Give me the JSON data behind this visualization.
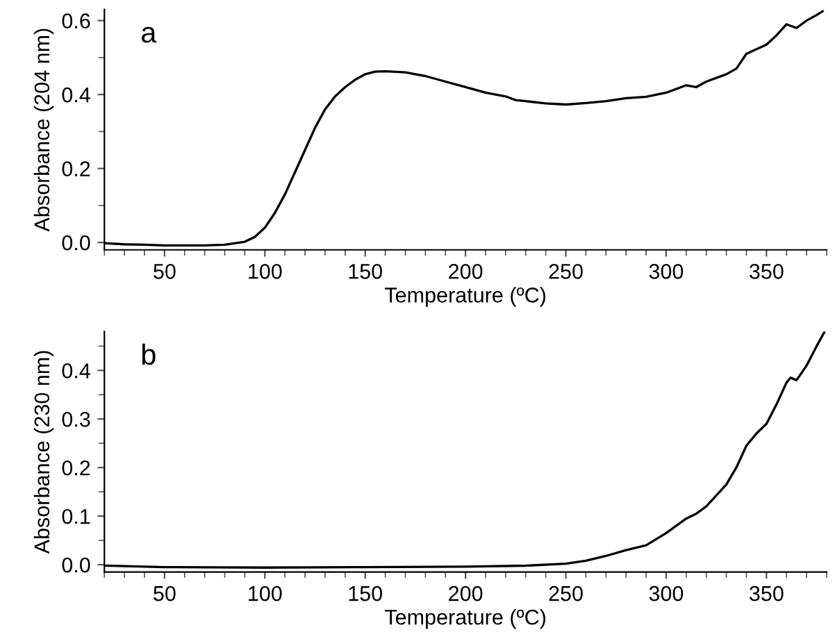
{
  "chart_data": [
    {
      "type": "line",
      "annotations": [
        "a"
      ],
      "xlabel": "Temperature (ºC)",
      "ylabel": "Absorbance (204 nm)",
      "xlim": [
        20,
        380
      ],
      "xticks": [
        50,
        100,
        150,
        200,
        250,
        300,
        350
      ],
      "ylim": [
        -0.02,
        0.63
      ],
      "yticks": [
        {
          "value": 0,
          "label": "0.0"
        },
        0.2,
        0.4,
        0.6
      ],
      "grid": false,
      "legend": false,
      "series": [
        {
          "color": "#000000",
          "x": [
            20,
            30,
            40,
            50,
            60,
            70,
            80,
            90,
            95,
            100,
            105,
            110,
            115,
            120,
            125,
            130,
            135,
            140,
            145,
            150,
            155,
            160,
            170,
            175,
            180,
            190,
            200,
            210,
            220,
            225,
            230,
            240,
            250,
            260,
            270,
            280,
            290,
            300,
            310,
            315,
            320,
            330,
            335,
            340,
            350,
            355,
            360,
            365,
            370,
            375,
            378
          ],
          "values": [
            -0.002,
            -0.005,
            -0.006,
            -0.008,
            -0.008,
            -0.008,
            -0.006,
            0.002,
            0.015,
            0.04,
            0.08,
            0.13,
            0.19,
            0.25,
            0.31,
            0.36,
            0.395,
            0.42,
            0.44,
            0.455,
            0.462,
            0.463,
            0.46,
            0.455,
            0.45,
            0.435,
            0.42,
            0.405,
            0.395,
            0.385,
            0.382,
            0.376,
            0.373,
            0.377,
            0.382,
            0.39,
            0.394,
            0.405,
            0.425,
            0.42,
            0.435,
            0.455,
            0.47,
            0.51,
            0.535,
            0.56,
            0.59,
            0.58,
            0.6,
            0.615,
            0.625
          ]
        }
      ]
    },
    {
      "type": "line",
      "annotations": [
        "b"
      ],
      "xlabel": "Temperature (ºC)",
      "ylabel": "Absorbance (230 nm)",
      "xlim": [
        20,
        380
      ],
      "xticks": [
        50,
        100,
        150,
        200,
        250,
        300,
        350
      ],
      "ylim": [
        -0.015,
        0.48
      ],
      "yticks": [
        {
          "value": 0,
          "label": "0.0"
        },
        0.1,
        0.2,
        0.3,
        0.4
      ],
      "grid": false,
      "legend": false,
      "series": [
        {
          "color": "#000000",
          "x": [
            20,
            50,
            100,
            150,
            200,
            230,
            250,
            260,
            270,
            280,
            290,
            300,
            310,
            315,
            320,
            330,
            335,
            340,
            345,
            350,
            355,
            360,
            362,
            365,
            370,
            375,
            379
          ],
          "values": [
            -0.002,
            -0.005,
            -0.006,
            -0.005,
            -0.004,
            -0.002,
            0.002,
            0.008,
            0.018,
            0.03,
            0.04,
            0.065,
            0.095,
            0.105,
            0.12,
            0.165,
            0.2,
            0.245,
            0.27,
            0.29,
            0.33,
            0.375,
            0.385,
            0.38,
            0.41,
            0.45,
            0.48
          ]
        }
      ]
    }
  ]
}
